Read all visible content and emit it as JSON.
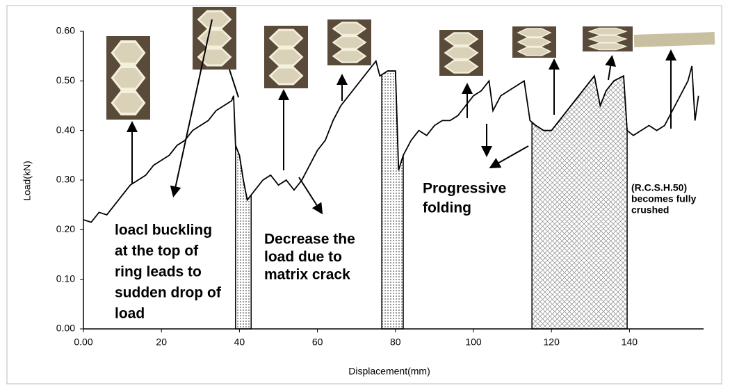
{
  "chart_data": {
    "type": "line",
    "x_label": "Displacement(mm)",
    "y_label": "Load(kN)",
    "x": [
      0,
      2,
      4,
      6,
      8,
      10,
      12,
      14,
      16,
      18,
      20,
      22,
      24,
      26,
      28,
      30,
      32,
      34,
      36,
      38,
      38.5,
      39,
      40,
      41,
      42,
      44,
      46,
      48,
      50,
      52,
      54,
      56,
      58,
      60,
      62,
      64,
      66,
      68,
      70,
      72,
      74,
      75,
      76,
      78,
      80,
      80.8,
      82,
      84,
      86,
      88,
      90,
      92,
      94,
      96,
      98,
      100,
      102,
      104,
      105,
      107,
      109,
      111,
      113,
      114.5,
      116,
      118,
      120,
      122,
      124,
      126,
      128,
      130,
      131,
      132.5,
      134,
      136,
      138.5,
      139.4,
      141,
      143,
      145,
      147,
      149,
      151,
      153,
      155,
      156,
      156.8,
      157.7
    ],
    "series": [
      {
        "color": "#000000",
        "values": [
          0.22,
          0.215,
          0.235,
          0.23,
          0.25,
          0.27,
          0.29,
          0.3,
          0.31,
          0.33,
          0.34,
          0.35,
          0.37,
          0.38,
          0.4,
          0.41,
          0.42,
          0.44,
          0.45,
          0.46,
          0.47,
          0.37,
          0.35,
          0.3,
          0.26,
          0.28,
          0.3,
          0.31,
          0.29,
          0.3,
          0.28,
          0.3,
          0.33,
          0.36,
          0.38,
          0.42,
          0.45,
          0.47,
          0.49,
          0.51,
          0.53,
          0.54,
          0.51,
          0.52,
          0.52,
          0.32,
          0.35,
          0.38,
          0.4,
          0.39,
          0.41,
          0.42,
          0.42,
          0.43,
          0.45,
          0.47,
          0.48,
          0.5,
          0.44,
          0.47,
          0.48,
          0.49,
          0.5,
          0.42,
          0.41,
          0.4,
          0.4,
          0.42,
          0.44,
          0.46,
          0.48,
          0.5,
          0.51,
          0.45,
          0.48,
          0.5,
          0.51,
          0.4,
          0.39,
          0.4,
          0.41,
          0.4,
          0.41,
          0.44,
          0.47,
          0.5,
          0.53,
          0.42,
          0.47
        ]
      }
    ],
    "shaded_regions": [
      {
        "x": [
          39,
          43
        ],
        "pattern": "dots"
      },
      {
        "x": [
          76.5,
          82
        ],
        "pattern": "dots"
      },
      {
        "x": [
          115,
          139.4
        ],
        "pattern": "cross"
      }
    ],
    "xlim": [
      0,
      159
    ],
    "ylim": [
      0,
      0.6
    ],
    "xticks": [
      {
        "value": 0,
        "label": "0.00"
      },
      20,
      40,
      60,
      80,
      100,
      120,
      140
    ],
    "yticks": [
      {
        "value": 0,
        "label": "0.00"
      },
      {
        "value": 0.1,
        "label": "0.10"
      },
      {
        "value": 0.2,
        "label": "0.20"
      },
      {
        "value": 0.3,
        "label": "0.30"
      },
      {
        "value": 0.4,
        "label": "0.40"
      },
      {
        "value": 0.5,
        "label": "0.50"
      },
      {
        "value": 0.6,
        "label": "0.60"
      }
    ],
    "annotations": [
      {
        "lines": [
          "loacl buckling",
          "at the top of",
          "ring leads to",
          "sudden drop of",
          "load"
        ]
      },
      {
        "lines": [
          "Decrease the",
          "load due to",
          "matrix crack"
        ]
      },
      {
        "lines": [
          "Progressive",
          "folding"
        ]
      },
      {
        "lines": [
          "(R.C.S.H.50)",
          "becomes fully",
          "crushed"
        ]
      }
    ]
  }
}
